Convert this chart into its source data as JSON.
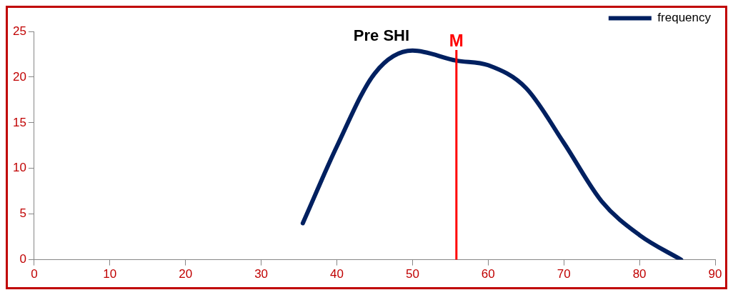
{
  "chart_data": {
    "type": "line",
    "title": "Pre SHI",
    "x": [
      35.5,
      40,
      45,
      50,
      55.8,
      60,
      65,
      70,
      75,
      80,
      85.5
    ],
    "series": [
      {
        "name": "frequency",
        "color": "#002060",
        "values": [
          4,
          12.4,
          20.4,
          22.9,
          21.8,
          21.3,
          18.8,
          12.8,
          6.4,
          2.7,
          0
        ]
      }
    ],
    "xlim": [
      0,
      90
    ],
    "xticks": [
      0,
      10,
      20,
      30,
      40,
      50,
      60,
      70,
      80,
      90
    ],
    "ylim": [
      0,
      25
    ],
    "yticks": [
      0,
      5,
      10,
      15,
      20,
      25
    ],
    "ref_lines": [
      {
        "axis": "x",
        "value": 55.8,
        "label": "M",
        "color": "#ff0000"
      }
    ],
    "grid": false,
    "legend": "top right",
    "marker": "none",
    "line_style": "solid"
  }
}
